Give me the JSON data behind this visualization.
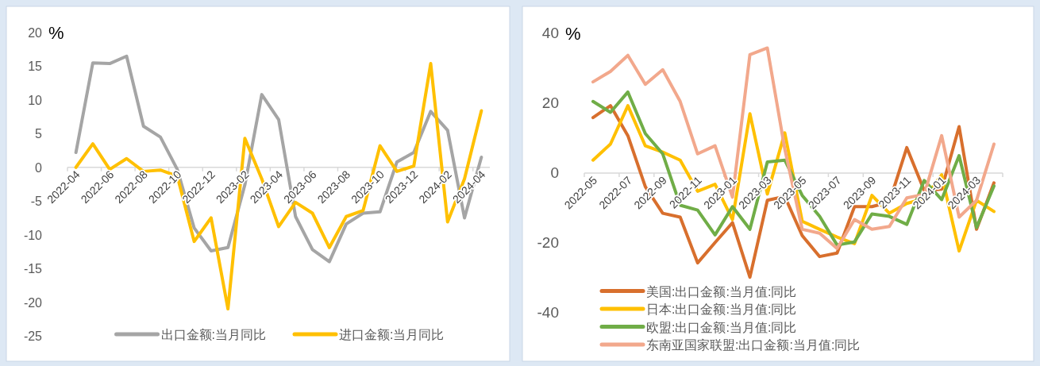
{
  "chart_data": [
    {
      "type": "line",
      "ylabel": "%",
      "legend": "bottom",
      "ylim": [
        -25,
        20
      ],
      "yticks": [
        -25,
        -20,
        -15,
        -10,
        -5,
        0,
        5,
        10,
        15,
        20
      ],
      "categories": [
        "2022-04",
        null,
        "2022-06",
        null,
        "2022-08",
        null,
        "2022-10",
        null,
        "2022-12",
        null,
        "2023-02",
        null,
        "2023-04",
        null,
        "2023-06",
        null,
        "2023-08",
        null,
        "2023-10",
        null,
        "2023-12",
        null,
        "2024-02",
        null,
        "2024-04"
      ],
      "series": [
        {
          "name": "出口金额:当月同比",
          "color": "#a5a5a5",
          "values": [
            2.2,
            15.5,
            15.4,
            16.5,
            6.1,
            4.5,
            -0.3,
            -9.0,
            -12.4,
            -11.9,
            -2.6,
            10.8,
            7.1,
            -7.3,
            -12.2,
            -14.0,
            -8.4,
            -6.8,
            -6.6,
            0.8,
            2.2,
            8.3,
            5.5,
            -7.5,
            1.5
          ]
        },
        {
          "name": "进口金额:当月同比",
          "color": "#ffc000",
          "values": [
            0,
            3.5,
            -0.3,
            1.3,
            -0.6,
            -0.4,
            -1.3,
            -11.0,
            -7.5,
            -21.0,
            4.3,
            -1.7,
            -8.8,
            -5.2,
            -6.8,
            -11.9,
            -7.3,
            -6.4,
            3.2,
            -0.6,
            0.2,
            15.4,
            -8.1,
            -1.7,
            8.4
          ]
        }
      ]
    },
    {
      "type": "line",
      "ylabel": "%",
      "legend": "bottom",
      "ylim": [
        -40,
        40
      ],
      "yticks": [
        -40,
        -20,
        0,
        20,
        40
      ],
      "categories": [
        "2022-05",
        null,
        "2022-07",
        null,
        "2022-09",
        null,
        "2022-11",
        null,
        "2023-01",
        null,
        "2023-03",
        null,
        "2023-05",
        null,
        "2023-07",
        null,
        "2023-09",
        null,
        "2023-11",
        null,
        "2024-01",
        null,
        "2024-03",
        null
      ],
      "series": [
        {
          "name": "美国:出口金额:当月值:同比",
          "color": "#d86f2d",
          "values": [
            15.9,
            19.3,
            10.7,
            -3.9,
            -11.5,
            -12.6,
            -25.7,
            -19.9,
            -14.2,
            -29.8,
            -7.8,
            -6.7,
            -17.9,
            -23.9,
            -22.9,
            -9.6,
            -9.6,
            -8.3,
            7.3,
            -5.0,
            -4.6,
            13.3,
            -16.1,
            -2.8
          ]
        },
        {
          "name": "日本:出口金额:当月值:同比",
          "color": "#ffc000",
          "values": [
            3.7,
            8.3,
            19.3,
            7.8,
            6.0,
            3.7,
            -5.2,
            -3.2,
            -13.3,
            17.0,
            -6.0,
            11.5,
            -13.8,
            -16.1,
            -18.3,
            -20.2,
            -6.4,
            -11.5,
            -8.7,
            -7.3,
            -0.5,
            -22.3,
            -7.8,
            -11.0
          ]
        },
        {
          "name": "欧盟:出口金额:当月值:同比",
          "color": "#70ad47",
          "values": [
            20.5,
            17.4,
            23.2,
            11.3,
            5.5,
            -9.2,
            -10.6,
            -17.7,
            -9.6,
            -16.1,
            3.2,
            3.7,
            -6.4,
            -12.4,
            -20.6,
            -19.7,
            -11.7,
            -12.4,
            -14.7,
            -2.1,
            -7.6,
            5.0,
            -15.6,
            -3.7
          ]
        },
        {
          "name": "东南亚国家联盟:出口金额:当月值:同比",
          "color": "#f2a88c",
          "values": [
            26.1,
            29.1,
            33.7,
            25.4,
            29.6,
            20.5,
            5.5,
            7.8,
            -6.9,
            33.9,
            35.8,
            6.9,
            -16.1,
            -17.2,
            -21.6,
            -13.3,
            -16.1,
            -15.3,
            -7.1,
            -6.1,
            10.7,
            -12.6,
            -7.8,
            8.3
          ]
        }
      ]
    }
  ]
}
